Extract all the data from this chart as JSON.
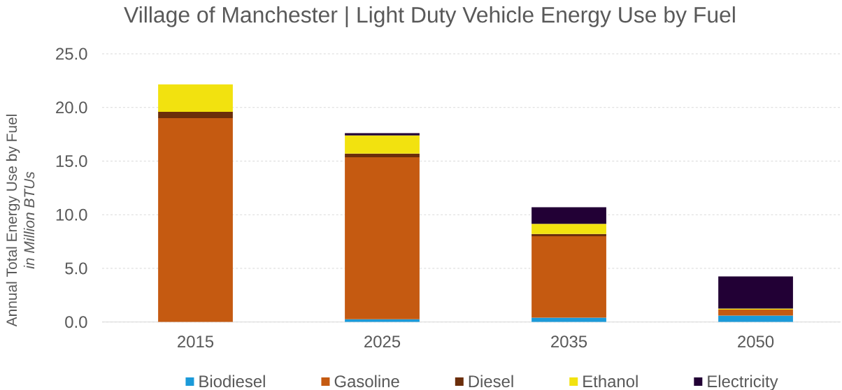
{
  "chart_data": {
    "type": "bar",
    "title": "Village of Manchester | Light Duty Vehicle Energy Use by Fuel",
    "ylabel": "Annual Total Energy Use by Fuel *in Million BTUs*",
    "categories": [
      "2015",
      "2025",
      "2035",
      "2050"
    ],
    "stacked": true,
    "series": [
      {
        "name": "Biodiesel",
        "color": "#1b9ad9",
        "values": [
          0,
          0.25,
          0.4,
          0.6
        ]
      },
      {
        "name": "Gasoline",
        "color": "#c55a11",
        "values": [
          19.0,
          15.1,
          7.6,
          0.55
        ]
      },
      {
        "name": "Diesel",
        "color": "#6b2e0b",
        "values": [
          0.6,
          0.35,
          0.2,
          0
        ]
      },
      {
        "name": "Ethanol",
        "color": "#f2e20f",
        "values": [
          2.55,
          1.7,
          0.95,
          0.1
        ]
      },
      {
        "name": "Electricity",
        "color": "#220035",
        "values": [
          0,
          0.2,
          1.55,
          3.0
        ]
      }
    ],
    "ylim": [
      0,
      25
    ],
    "yticks": [
      {
        "value": 0,
        "label": "0.0"
      },
      {
        "value": 5,
        "label": "5.0"
      },
      {
        "value": 10,
        "label": "10.0"
      },
      {
        "value": 15,
        "label": "15.0"
      },
      {
        "value": 20,
        "label": "20.0"
      },
      {
        "value": 25,
        "label": "25.0"
      }
    ],
    "grid": "y",
    "legend": "bottom"
  }
}
